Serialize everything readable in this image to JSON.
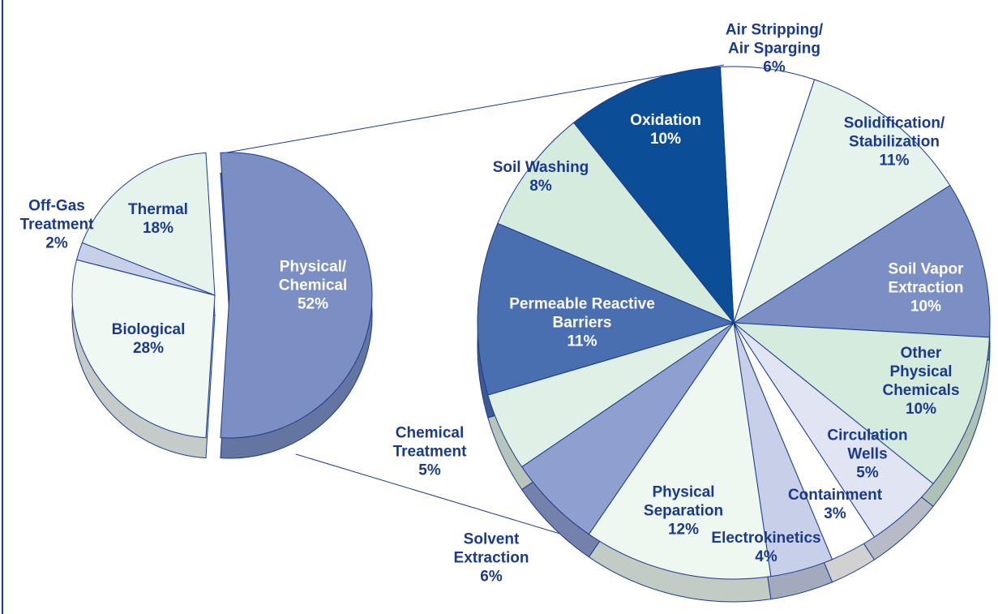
{
  "chart_data": [
    {
      "type": "pie",
      "labels": [
        "Physical/\nChemical",
        "Biological",
        "Off-Gas\nTreatment",
        "Thermal"
      ],
      "values": [
        52,
        28,
        2,
        18
      ],
      "value_labels": [
        "52%",
        "28%",
        "2%",
        "18%"
      ],
      "colors": [
        "#7b8fc4",
        "#f0f8f4",
        "#c8cfe8",
        "#e6f3ec"
      ]
    },
    {
      "type": "pie",
      "labels": [
        "Air Stripping/\nAir Sparging",
        "Solidification/\nStabilization",
        "Soil Vapor\nExtraction",
        "Other Physical\nChemicals",
        "Circulation\nWells",
        "Containment",
        "Electrokinetics",
        "Physical\nSeparation",
        "Solvent\nExtraction",
        "Chemical\nTreatment",
        "Permeable Reactive\nBarriers",
        "Soil Washing",
        "Oxidation"
      ],
      "values": [
        6,
        11,
        10,
        10,
        5,
        3,
        4,
        12,
        6,
        5,
        11,
        8,
        10
      ],
      "value_labels": [
        "6%",
        "11%",
        "10%",
        "10%",
        "5%",
        "3%",
        "4%",
        "12%",
        "6%",
        "5%",
        "11%",
        "8%",
        "10%"
      ],
      "colors": [
        "#ffffff",
        "#e6f3ec",
        "#7b8fc4",
        "#d4ebdd",
        "#e0e4f3",
        "#ffffff",
        "#c8cfe8",
        "#eef7f0",
        "#8e9fd0",
        "#e0f0e6",
        "#4a6fb0",
        "#d4ebdd",
        "#0c4d97"
      ]
    }
  ]
}
